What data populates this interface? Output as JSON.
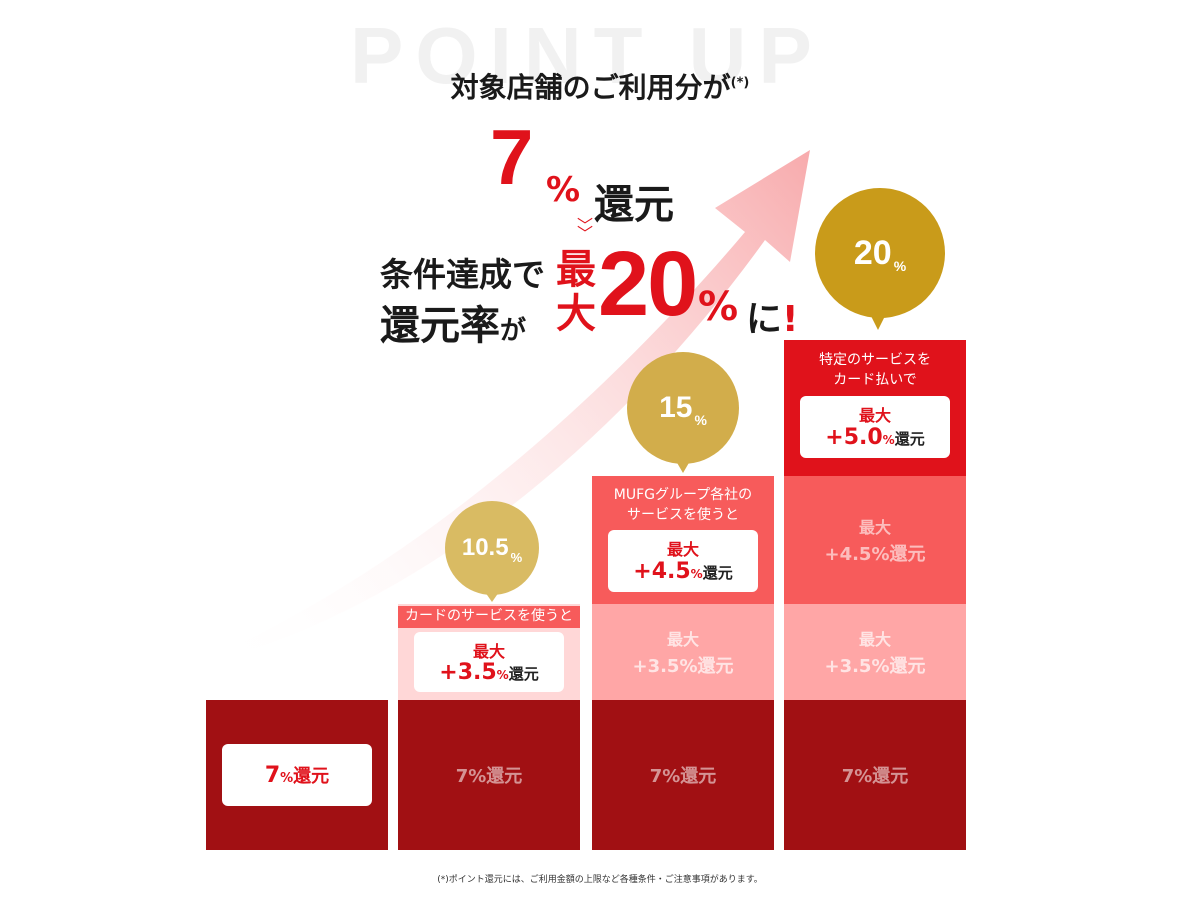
{
  "background_word": "POINT UP",
  "headline": {
    "text": "対象店舗のご利用分が",
    "note_mark": "(*)"
  },
  "base_rate": {
    "number": "7",
    "percent": "%",
    "unit": "還元"
  },
  "condition": {
    "line1": "条件達成で",
    "line2_main": "還元率",
    "line2_ga": "が",
    "max_label": "最大",
    "max_number": "20",
    "percent": "%",
    "suffix": "に",
    "exclaim": "!"
  },
  "steps": [
    {
      "bubble": null,
      "base_card": "7%還元"
    },
    {
      "bubble": {
        "number": "10.5",
        "percent": "%"
      },
      "caption": "カードのサービスを使うと",
      "card": {
        "label": "最大",
        "value": "+3.5",
        "percent": "%",
        "unit": "還元"
      },
      "base_faded": "7%還元"
    },
    {
      "bubble": {
        "number": "15",
        "percent": "%"
      },
      "caption_line1": "MUFGグループ各社の",
      "caption_line2": "サービスを使うと",
      "card": {
        "label": "最大",
        "value": "+4.5",
        "percent": "%",
        "unit": "還元"
      },
      "faded_label": "最大",
      "faded_value": "+3.5%還元",
      "base_faded": "7%還元"
    },
    {
      "bubble": {
        "number": "20",
        "percent": "%"
      },
      "caption_line1": "特定のサービスを",
      "caption_line2": "カード払いで",
      "card": {
        "label": "最大",
        "value": "+5.0",
        "percent": "%",
        "unit": "還元"
      },
      "faded_mid_label": "最大",
      "faded_mid_value": "+4.5%還元",
      "faded_low_label": "最大",
      "faded_low_value": "+3.5%還元",
      "base_faded": "7%還元"
    }
  ],
  "base_card_parts": {
    "number": "7",
    "percent": "%",
    "unit": "還元"
  },
  "colors": {
    "accent_red": "#e0121b",
    "dark_red": "#a11013",
    "gold": "#c99b1a"
  },
  "footnote": "(*)ポイント還元には、ご利用金額の上限など各種条件・ご注意事項があります。"
}
